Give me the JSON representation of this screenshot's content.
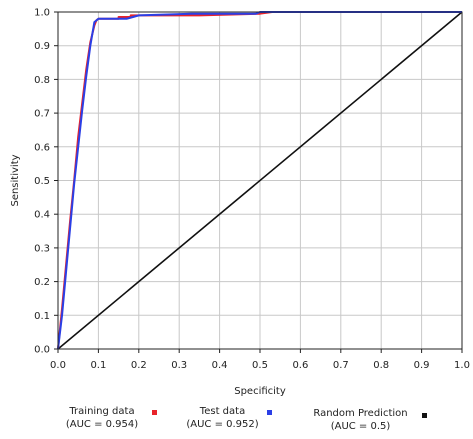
{
  "chart_data": {
    "type": "line",
    "title": "",
    "xlabel": "Specificity",
    "ylabel": "Sensitivity",
    "xlim": [
      0.0,
      1.0
    ],
    "ylim": [
      0.0,
      1.0
    ],
    "x_ticks": [
      "0.0",
      "0.1",
      "0.2",
      "0.3",
      "0.4",
      "0.5",
      "0.6",
      "0.7",
      "0.8",
      "0.9",
      "1.0"
    ],
    "y_ticks": [
      "0.0",
      "0.1",
      "0.2",
      "0.3",
      "0.4",
      "0.5",
      "0.6",
      "0.7",
      "0.8",
      "0.9",
      "1.0"
    ],
    "grid": true,
    "legend_placement": "bottom",
    "series": [
      {
        "name": "Training data",
        "auc_label": "(AUC = 0.954)",
        "color": "#e8232a",
        "x": [
          0.0,
          0.01,
          0.02,
          0.03,
          0.04,
          0.05,
          0.06,
          0.07,
          0.08,
          0.09,
          0.095,
          0.1,
          0.15,
          0.15,
          0.18,
          0.18,
          0.3,
          0.35,
          0.5,
          0.53,
          1.0
        ],
        "y": [
          0.0,
          0.12,
          0.25,
          0.38,
          0.5,
          0.63,
          0.73,
          0.83,
          0.91,
          0.96,
          0.975,
          0.98,
          0.98,
          0.985,
          0.985,
          0.99,
          0.99,
          0.99,
          0.995,
          1.0,
          1.0
        ]
      },
      {
        "name": "Test data",
        "auc_label": "(AUC = 0.952)",
        "color": "#2b3fe6",
        "x": [
          0.0,
          0.01,
          0.02,
          0.03,
          0.04,
          0.05,
          0.06,
          0.07,
          0.08,
          0.09,
          0.1,
          0.17,
          0.2,
          0.33,
          0.49,
          0.5,
          0.53,
          1.0
        ],
        "y": [
          0.0,
          0.1,
          0.23,
          0.36,
          0.49,
          0.6,
          0.71,
          0.81,
          0.9,
          0.97,
          0.98,
          0.98,
          0.99,
          0.995,
          0.995,
          1.0,
          1.0,
          1.0
        ]
      },
      {
        "name": "Random Prediction",
        "auc_label": "(AUC = 0.5)",
        "color": "#111111",
        "x": [
          0.0,
          1.0
        ],
        "y": [
          0.0,
          1.0
        ]
      }
    ]
  }
}
